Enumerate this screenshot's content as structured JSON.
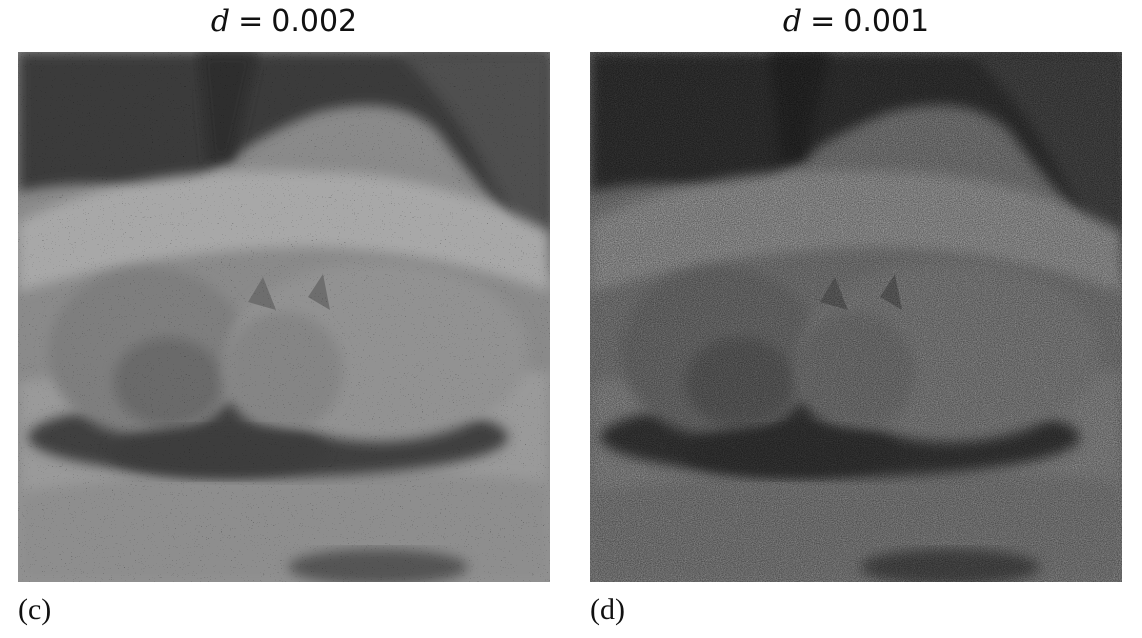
{
  "panels": [
    {
      "title_var": "d",
      "title_eq": "=",
      "title_value": "0.002",
      "caption": "(c)",
      "tone": "light"
    },
    {
      "title_var": "d",
      "title_eq": "=",
      "title_value": "0.001",
      "caption": "(d)",
      "tone": "dark"
    }
  ],
  "image_description_icon": "stippled-halftone-photo-icon"
}
